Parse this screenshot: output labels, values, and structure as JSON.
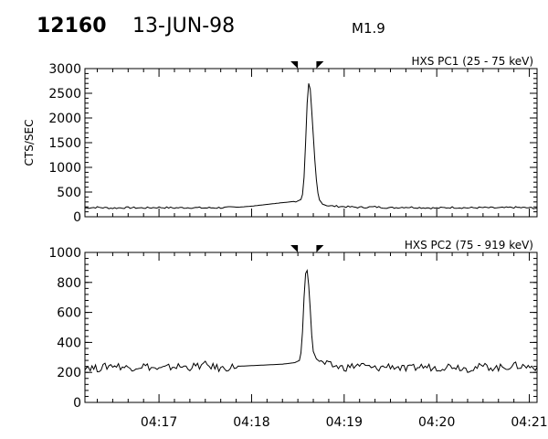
{
  "header": {
    "event_id": "12160",
    "date": "13-JUN-98",
    "flare_class": "M1.9"
  },
  "chart_data": [
    {
      "type": "line",
      "title": "HXS PC1 (25 - 75 keV)",
      "ylabel": "CTS/SEC",
      "xlabel": "",
      "xlim": [
        "04:16:12",
        "04:21:05"
      ],
      "ylim": [
        0,
        3000
      ],
      "y_ticks": [
        "0",
        "500",
        "1000",
        "1500",
        "2000",
        "2500",
        "3000"
      ],
      "markers": [
        "04:18:30",
        "04:18:42"
      ],
      "series": [
        {
          "points": [
            [
              "04:16:12",
              180
            ],
            [
              "04:16:20",
              190
            ],
            [
              "04:16:30",
              175
            ],
            [
              "04:16:40",
              185
            ],
            [
              "04:16:50",
              178
            ],
            [
              "04:17:00",
              190
            ],
            [
              "04:17:10",
              180
            ],
            [
              "04:17:20",
              186
            ],
            [
              "04:17:30",
              178
            ],
            [
              "04:17:40",
              184
            ],
            [
              "04:17:50",
              190
            ],
            [
              "04:18:00",
              215
            ],
            [
              "04:18:10",
              250
            ],
            [
              "04:18:20",
              285
            ],
            [
              "04:18:26",
              305
            ],
            [
              "04:18:30",
              320
            ],
            [
              "04:18:32",
              350
            ],
            [
              "04:18:33",
              450
            ],
            [
              "04:18:34",
              800
            ],
            [
              "04:18:35",
              1500
            ],
            [
              "04:18:36",
              2300
            ],
            [
              "04:18:37",
              2700
            ],
            [
              "04:18:38",
              2580
            ],
            [
              "04:18:39",
              2150
            ],
            [
              "04:18:40",
              1650
            ],
            [
              "04:18:41",
              1150
            ],
            [
              "04:18:42",
              750
            ],
            [
              "04:18:43",
              480
            ],
            [
              "04:18:44",
              340
            ],
            [
              "04:18:46",
              260
            ],
            [
              "04:18:50",
              220
            ],
            [
              "04:19:00",
              205
            ],
            [
              "04:19:10",
              190
            ],
            [
              "04:19:20",
              200
            ],
            [
              "04:19:30",
              180
            ],
            [
              "04:19:40",
              195
            ],
            [
              "04:19:50",
              185
            ],
            [
              "04:20:00",
              175
            ],
            [
              "04:20:10",
              190
            ],
            [
              "04:20:20",
              180
            ],
            [
              "04:20:30",
              185
            ],
            [
              "04:20:40",
              178
            ],
            [
              "04:20:50",
              190
            ],
            [
              "04:21:05",
              175
            ]
          ]
        }
      ]
    },
    {
      "type": "line",
      "title": "HXS PC2 (75 - 919 keV)",
      "ylabel": "",
      "xlabel": "",
      "xlim": [
        "04:16:12",
        "04:21:05"
      ],
      "ylim": [
        0,
        1000
      ],
      "y_ticks": [
        "0",
        "200",
        "400",
        "600",
        "800",
        "1000"
      ],
      "x_ticks": [
        "04:17",
        "04:18",
        "04:19",
        "04:20",
        "04:21"
      ],
      "markers": [
        "04:18:30",
        "04:18:42"
      ],
      "series": [
        {
          "points": [
            [
              "04:16:12",
              240
            ],
            [
              "04:16:20",
              225
            ],
            [
              "04:16:30",
              250
            ],
            [
              "04:16:40",
              230
            ],
            [
              "04:16:50",
              245
            ],
            [
              "04:17:00",
              220
            ],
            [
              "04:17:10",
              240
            ],
            [
              "04:17:20",
              235
            ],
            [
              "04:17:30",
              250
            ],
            [
              "04:17:40",
              225
            ],
            [
              "04:17:50",
              240
            ],
            [
              "04:18:00",
              245
            ],
            [
              "04:18:10",
              250
            ],
            [
              "04:18:20",
              255
            ],
            [
              "04:18:28",
              265
            ],
            [
              "04:18:31",
              280
            ],
            [
              "04:18:32",
              330
            ],
            [
              "04:18:33",
              470
            ],
            [
              "04:18:34",
              700
            ],
            [
              "04:18:35",
              860
            ],
            [
              "04:18:36",
              880
            ],
            [
              "04:18:37",
              780
            ],
            [
              "04:18:38",
              620
            ],
            [
              "04:18:39",
              450
            ],
            [
              "04:18:40",
              340
            ],
            [
              "04:18:42",
              290
            ],
            [
              "04:18:45",
              265
            ],
            [
              "04:18:50",
              250
            ],
            [
              "04:19:00",
              230
            ],
            [
              "04:19:10",
              250
            ],
            [
              "04:19:20",
              225
            ],
            [
              "04:19:30",
              245
            ],
            [
              "04:19:40",
              220
            ],
            [
              "04:19:50",
              240
            ],
            [
              "04:20:00",
              230
            ],
            [
              "04:20:10",
              245
            ],
            [
              "04:20:20",
              225
            ],
            [
              "04:20:30",
              240
            ],
            [
              "04:20:40",
              230
            ],
            [
              "04:20:50",
              245
            ],
            [
              "04:21:05",
              235
            ]
          ]
        }
      ]
    }
  ]
}
